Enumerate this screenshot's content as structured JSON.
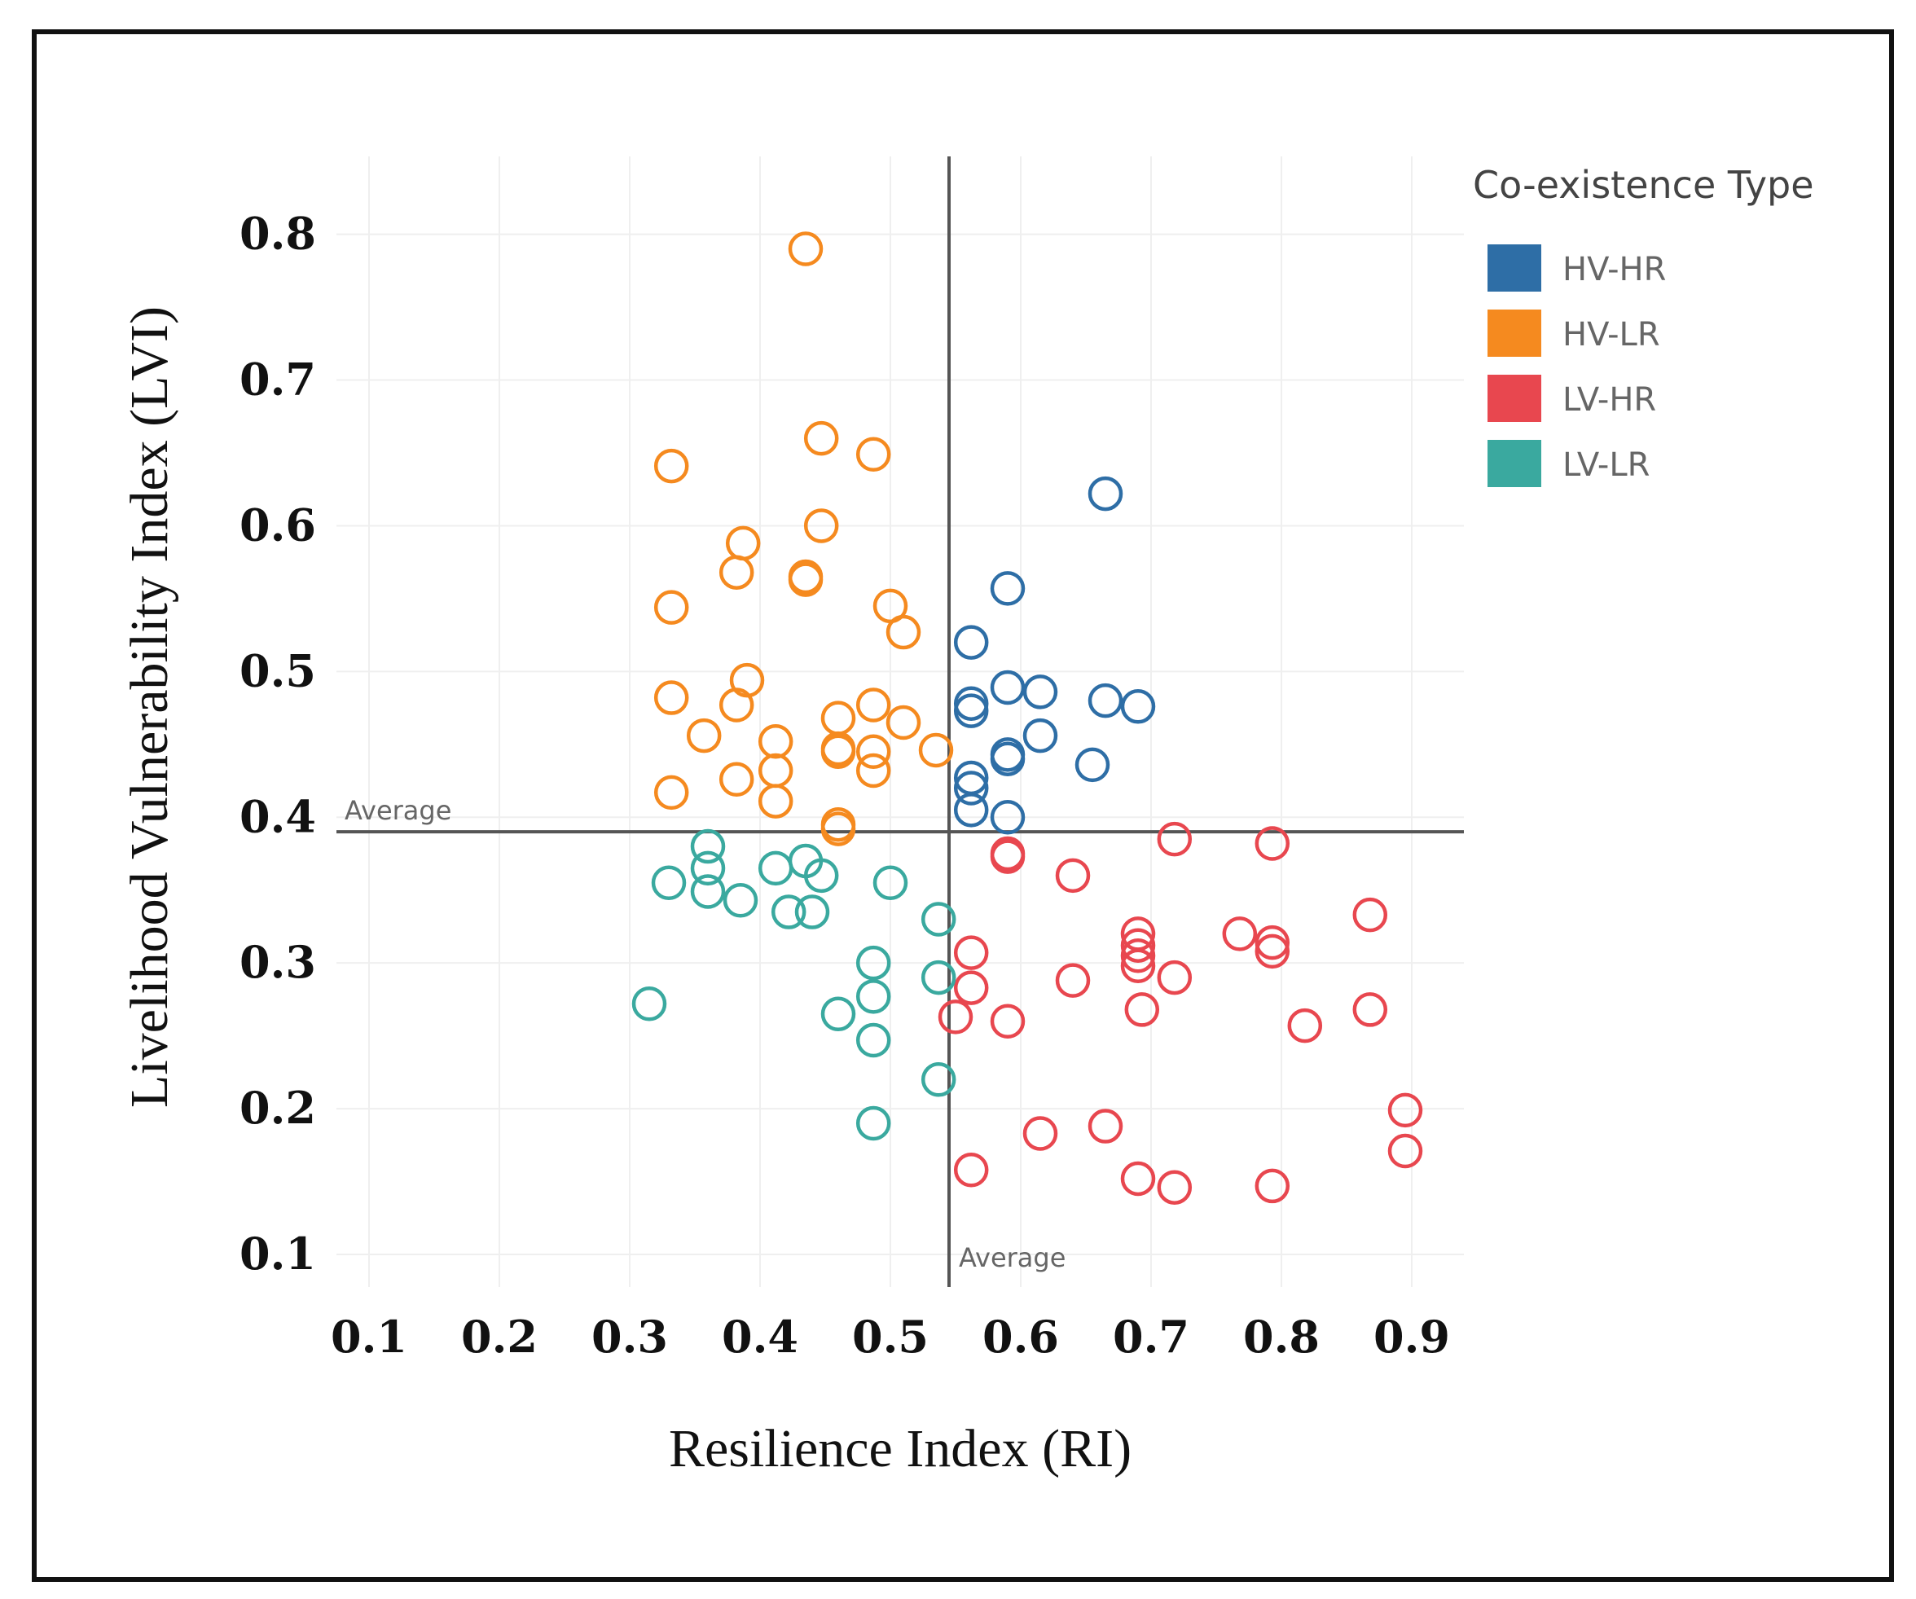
{
  "chart_data": {
    "type": "scatter",
    "title": "",
    "xlabel": "Resilience Index (RI)",
    "ylabel": "Livelihood Vulnerability Index (LVI)",
    "x_ticks": [
      "0.1",
      "0.2",
      "0.3",
      "0.4",
      "0.5",
      "0.6",
      "0.7",
      "0.8",
      "0.9"
    ],
    "y_ticks": [
      "0.1",
      "0.2",
      "0.3",
      "0.4",
      "0.5",
      "0.6",
      "0.7",
      "0.8"
    ],
    "xlim": [
      0.075,
      0.94
    ],
    "ylim": [
      0.1,
      0.835
    ],
    "grid": true,
    "average_lines": {
      "ri": 0.545,
      "lvi": 0.39,
      "ri_label": "Average",
      "lvi_label": "Average"
    },
    "legend": {
      "title": "Co-existence Type",
      "position": "top-right"
    },
    "series": [
      {
        "name": "HV-HR",
        "color": "#2e6ea6",
        "points": [
          [
            0.665,
            0.622
          ],
          [
            0.59,
            0.557
          ],
          [
            0.562,
            0.52
          ],
          [
            0.59,
            0.489
          ],
          [
            0.615,
            0.486
          ],
          [
            0.665,
            0.48
          ],
          [
            0.69,
            0.476
          ],
          [
            0.562,
            0.478
          ],
          [
            0.562,
            0.473
          ],
          [
            0.615,
            0.456
          ],
          [
            0.59,
            0.443
          ],
          [
            0.59,
            0.44
          ],
          [
            0.655,
            0.436
          ],
          [
            0.562,
            0.427
          ],
          [
            0.562,
            0.42
          ],
          [
            0.562,
            0.405
          ],
          [
            0.59,
            0.4
          ]
        ]
      },
      {
        "name": "HV-LR",
        "color": "#f58a1f",
        "points": [
          [
            0.435,
            0.79
          ],
          [
            0.447,
            0.66
          ],
          [
            0.487,
            0.649
          ],
          [
            0.332,
            0.641
          ],
          [
            0.447,
            0.6
          ],
          [
            0.387,
            0.588
          ],
          [
            0.382,
            0.568
          ],
          [
            0.435,
            0.565
          ],
          [
            0.435,
            0.563
          ],
          [
            0.332,
            0.544
          ],
          [
            0.5,
            0.545
          ],
          [
            0.51,
            0.527
          ],
          [
            0.39,
            0.494
          ],
          [
            0.332,
            0.482
          ],
          [
            0.382,
            0.477
          ],
          [
            0.487,
            0.477
          ],
          [
            0.46,
            0.468
          ],
          [
            0.51,
            0.465
          ],
          [
            0.357,
            0.456
          ],
          [
            0.412,
            0.452
          ],
          [
            0.46,
            0.447
          ],
          [
            0.46,
            0.445
          ],
          [
            0.487,
            0.445
          ],
          [
            0.535,
            0.446
          ],
          [
            0.412,
            0.432
          ],
          [
            0.487,
            0.432
          ],
          [
            0.382,
            0.426
          ],
          [
            0.332,
            0.417
          ],
          [
            0.412,
            0.411
          ],
          [
            0.46,
            0.395
          ],
          [
            0.46,
            0.392
          ]
        ]
      },
      {
        "name": "LV-HR",
        "color": "#e8474f",
        "points": [
          [
            0.718,
            0.385
          ],
          [
            0.793,
            0.382
          ],
          [
            0.59,
            0.375
          ],
          [
            0.59,
            0.373
          ],
          [
            0.64,
            0.36
          ],
          [
            0.868,
            0.333
          ],
          [
            0.69,
            0.32
          ],
          [
            0.768,
            0.32
          ],
          [
            0.793,
            0.314
          ],
          [
            0.69,
            0.312
          ],
          [
            0.793,
            0.308
          ],
          [
            0.69,
            0.305
          ],
          [
            0.562,
            0.307
          ],
          [
            0.69,
            0.298
          ],
          [
            0.718,
            0.29
          ],
          [
            0.64,
            0.288
          ],
          [
            0.562,
            0.283
          ],
          [
            0.868,
            0.268
          ],
          [
            0.693,
            0.268
          ],
          [
            0.55,
            0.263
          ],
          [
            0.59,
            0.26
          ],
          [
            0.818,
            0.257
          ],
          [
            0.895,
            0.199
          ],
          [
            0.615,
            0.183
          ],
          [
            0.665,
            0.188
          ],
          [
            0.895,
            0.171
          ],
          [
            0.562,
            0.158
          ],
          [
            0.69,
            0.152
          ],
          [
            0.718,
            0.146
          ],
          [
            0.793,
            0.147
          ]
        ]
      },
      {
        "name": "LV-LR",
        "color": "#3aa99f",
        "points": [
          [
            0.36,
            0.38
          ],
          [
            0.435,
            0.37
          ],
          [
            0.36,
            0.365
          ],
          [
            0.412,
            0.365
          ],
          [
            0.447,
            0.36
          ],
          [
            0.33,
            0.355
          ],
          [
            0.5,
            0.355
          ],
          [
            0.36,
            0.349
          ],
          [
            0.385,
            0.343
          ],
          [
            0.422,
            0.335
          ],
          [
            0.44,
            0.335
          ],
          [
            0.537,
            0.33
          ],
          [
            0.487,
            0.3
          ],
          [
            0.537,
            0.29
          ],
          [
            0.487,
            0.277
          ],
          [
            0.315,
            0.272
          ],
          [
            0.46,
            0.265
          ],
          [
            0.487,
            0.247
          ],
          [
            0.537,
            0.22
          ],
          [
            0.487,
            0.19
          ]
        ]
      }
    ]
  }
}
